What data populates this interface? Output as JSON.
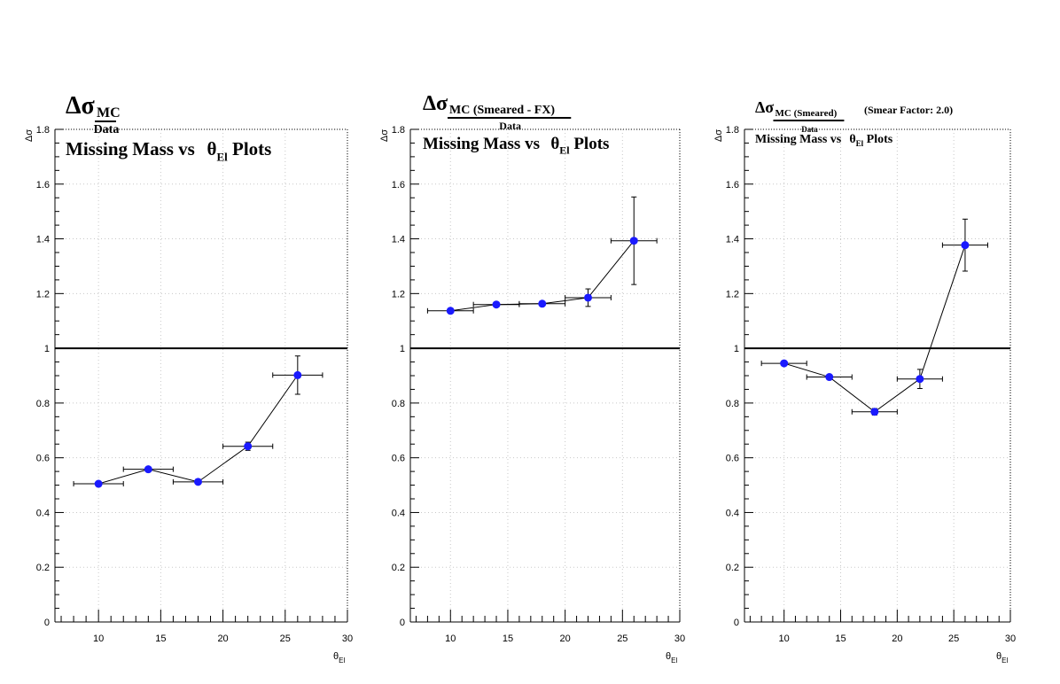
{
  "chart_data": [
    {
      "type": "scatter",
      "title_main": "Δσ",
      "title_numerator": "MC",
      "title_denominator": "Data",
      "subtitle_prefix": "Missing Mass vs ",
      "subtitle_symbol": "θ",
      "subtitle_subscript": "El",
      "subtitle_suffix": " Plots",
      "extra_note": "",
      "ylabel": "Δσ",
      "xlabel_symbol": "θ",
      "xlabel_subscript": "El",
      "xlim": [
        6.5,
        30
      ],
      "ylim": [
        0,
        1.8
      ],
      "xticks": [
        "10",
        "15",
        "20",
        "25",
        "30"
      ],
      "yticks": [
        "0",
        "0.2",
        "0.4",
        "0.6",
        "0.8",
        "1",
        "1.2",
        "1.4",
        "1.6",
        "1.8"
      ],
      "reference_line": 1,
      "grid": true,
      "marker_color": "#1a1aff",
      "points": [
        {
          "x": 10,
          "y": 0.505,
          "xerr": 2,
          "yerr": 0.008
        },
        {
          "x": 14,
          "y": 0.558,
          "xerr": 2,
          "yerr": 0.008
        },
        {
          "x": 18,
          "y": 0.512,
          "xerr": 2,
          "yerr": 0.008
        },
        {
          "x": 22,
          "y": 0.642,
          "xerr": 2,
          "yerr": 0.015
        },
        {
          "x": 26,
          "y": 0.902,
          "xerr": 2,
          "yerr": 0.07
        }
      ]
    },
    {
      "type": "scatter",
      "title_main": "Δσ",
      "title_numerator": "MC (Smeared - FX)",
      "title_denominator": "Data",
      "subtitle_prefix": "Missing Mass vs ",
      "subtitle_symbol": "θ",
      "subtitle_subscript": "El",
      "subtitle_suffix": " Plots",
      "extra_note": "",
      "ylabel": "Δσ",
      "xlabel_symbol": "θ",
      "xlabel_subscript": "El",
      "xlim": [
        6.5,
        30
      ],
      "ylim": [
        0,
        1.8
      ],
      "xticks": [
        "10",
        "15",
        "20",
        "25",
        "30"
      ],
      "yticks": [
        "0",
        "0.2",
        "0.4",
        "0.6",
        "0.8",
        "1",
        "1.2",
        "1.4",
        "1.6",
        "1.8"
      ],
      "reference_line": 1,
      "grid": true,
      "marker_color": "#1a1aff",
      "points": [
        {
          "x": 10,
          "y": 1.137,
          "xerr": 2,
          "yerr": 0.008
        },
        {
          "x": 14,
          "y": 1.16,
          "xerr": 2,
          "yerr": 0.008
        },
        {
          "x": 18,
          "y": 1.163,
          "xerr": 2,
          "yerr": 0.008
        },
        {
          "x": 22,
          "y": 1.185,
          "xerr": 2,
          "yerr": 0.032
        },
        {
          "x": 26,
          "y": 1.393,
          "xerr": 2,
          "yerr": 0.16
        }
      ]
    },
    {
      "type": "scatter",
      "title_main": "Δσ",
      "title_numerator": "MC (Smeared)",
      "title_denominator": "Data",
      "subtitle_prefix": "Missing Mass vs ",
      "subtitle_symbol": "θ",
      "subtitle_subscript": "El",
      "subtitle_suffix": " Plots",
      "extra_note": "(Smear Factor: 2.0)",
      "ylabel": "Δσ",
      "xlabel_symbol": "θ",
      "xlabel_subscript": "El",
      "xlim": [
        6.5,
        30
      ],
      "ylim": [
        0,
        1.8
      ],
      "xticks": [
        "10",
        "15",
        "20",
        "25",
        "30"
      ],
      "yticks": [
        "0",
        "0.2",
        "0.4",
        "0.6",
        "0.8",
        "1",
        "1.2",
        "1.4",
        "1.6",
        "1.8"
      ],
      "reference_line": 1,
      "grid": true,
      "marker_color": "#1a1aff",
      "points": [
        {
          "x": 10,
          "y": 0.945,
          "xerr": 2,
          "yerr": 0.008
        },
        {
          "x": 14,
          "y": 0.895,
          "xerr": 2,
          "yerr": 0.008
        },
        {
          "x": 18,
          "y": 0.768,
          "xerr": 2,
          "yerr": 0.012
        },
        {
          "x": 22,
          "y": 0.888,
          "xerr": 2,
          "yerr": 0.035
        },
        {
          "x": 26,
          "y": 1.377,
          "xerr": 2,
          "yerr": 0.095
        }
      ]
    }
  ]
}
